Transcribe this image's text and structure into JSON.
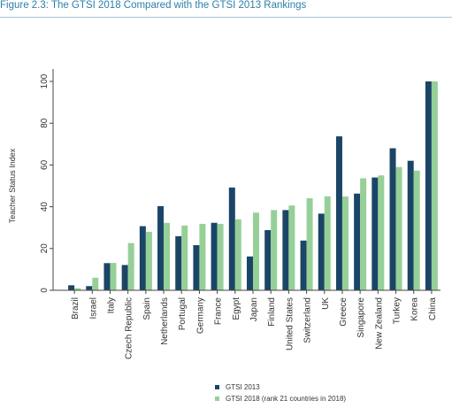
{
  "figure_title": "Figure 2.3: The GTSI 2018 Compared with the GTSI 2013 Rankings",
  "colors": {
    "gtsi_2013": "#1b4566",
    "gtsi_2018": "#96d098",
    "title": "#2b7fa8"
  },
  "chart_data": {
    "type": "bar",
    "title": "",
    "xlabel": "",
    "ylabel": "Teacher Status Index",
    "ylim": [
      0,
      100
    ],
    "yticks": [
      0,
      20,
      40,
      60,
      80,
      100
    ],
    "grid": false,
    "legend_position": "bottom",
    "categories": [
      "Brazil",
      "Israel",
      "Italy",
      "Czech Republic",
      "Spain",
      "Netherlands",
      "Portugal",
      "Germany",
      "France",
      "Egypt",
      "Japan",
      "Finland",
      "United States",
      "Switzerland",
      "UK",
      "Greece",
      "Singapore",
      "New Zealand",
      "Turkey",
      "Korea",
      "China"
    ],
    "series": [
      {
        "name": "GTSI 2013",
        "values": [
          2.4,
          2.0,
          13.0,
          12.1,
          30.7,
          40.3,
          25.9,
          21.6,
          32.3,
          49.2,
          16.2,
          28.8,
          38.4,
          23.8,
          36.7,
          73.7,
          46.3,
          54.0,
          68.0,
          62.0,
          100.0
        ]
      },
      {
        "name": "GTSI 2018 (rank 21 countries in 2018)",
        "values": [
          1.0,
          6.0,
          13.1,
          22.6,
          28.0,
          32.3,
          31.0,
          31.8,
          31.8,
          34.0,
          37.2,
          38.4,
          40.6,
          44.1,
          45.0,
          44.9,
          53.6,
          55.0,
          59.0,
          57.3,
          100.0
        ]
      }
    ]
  }
}
